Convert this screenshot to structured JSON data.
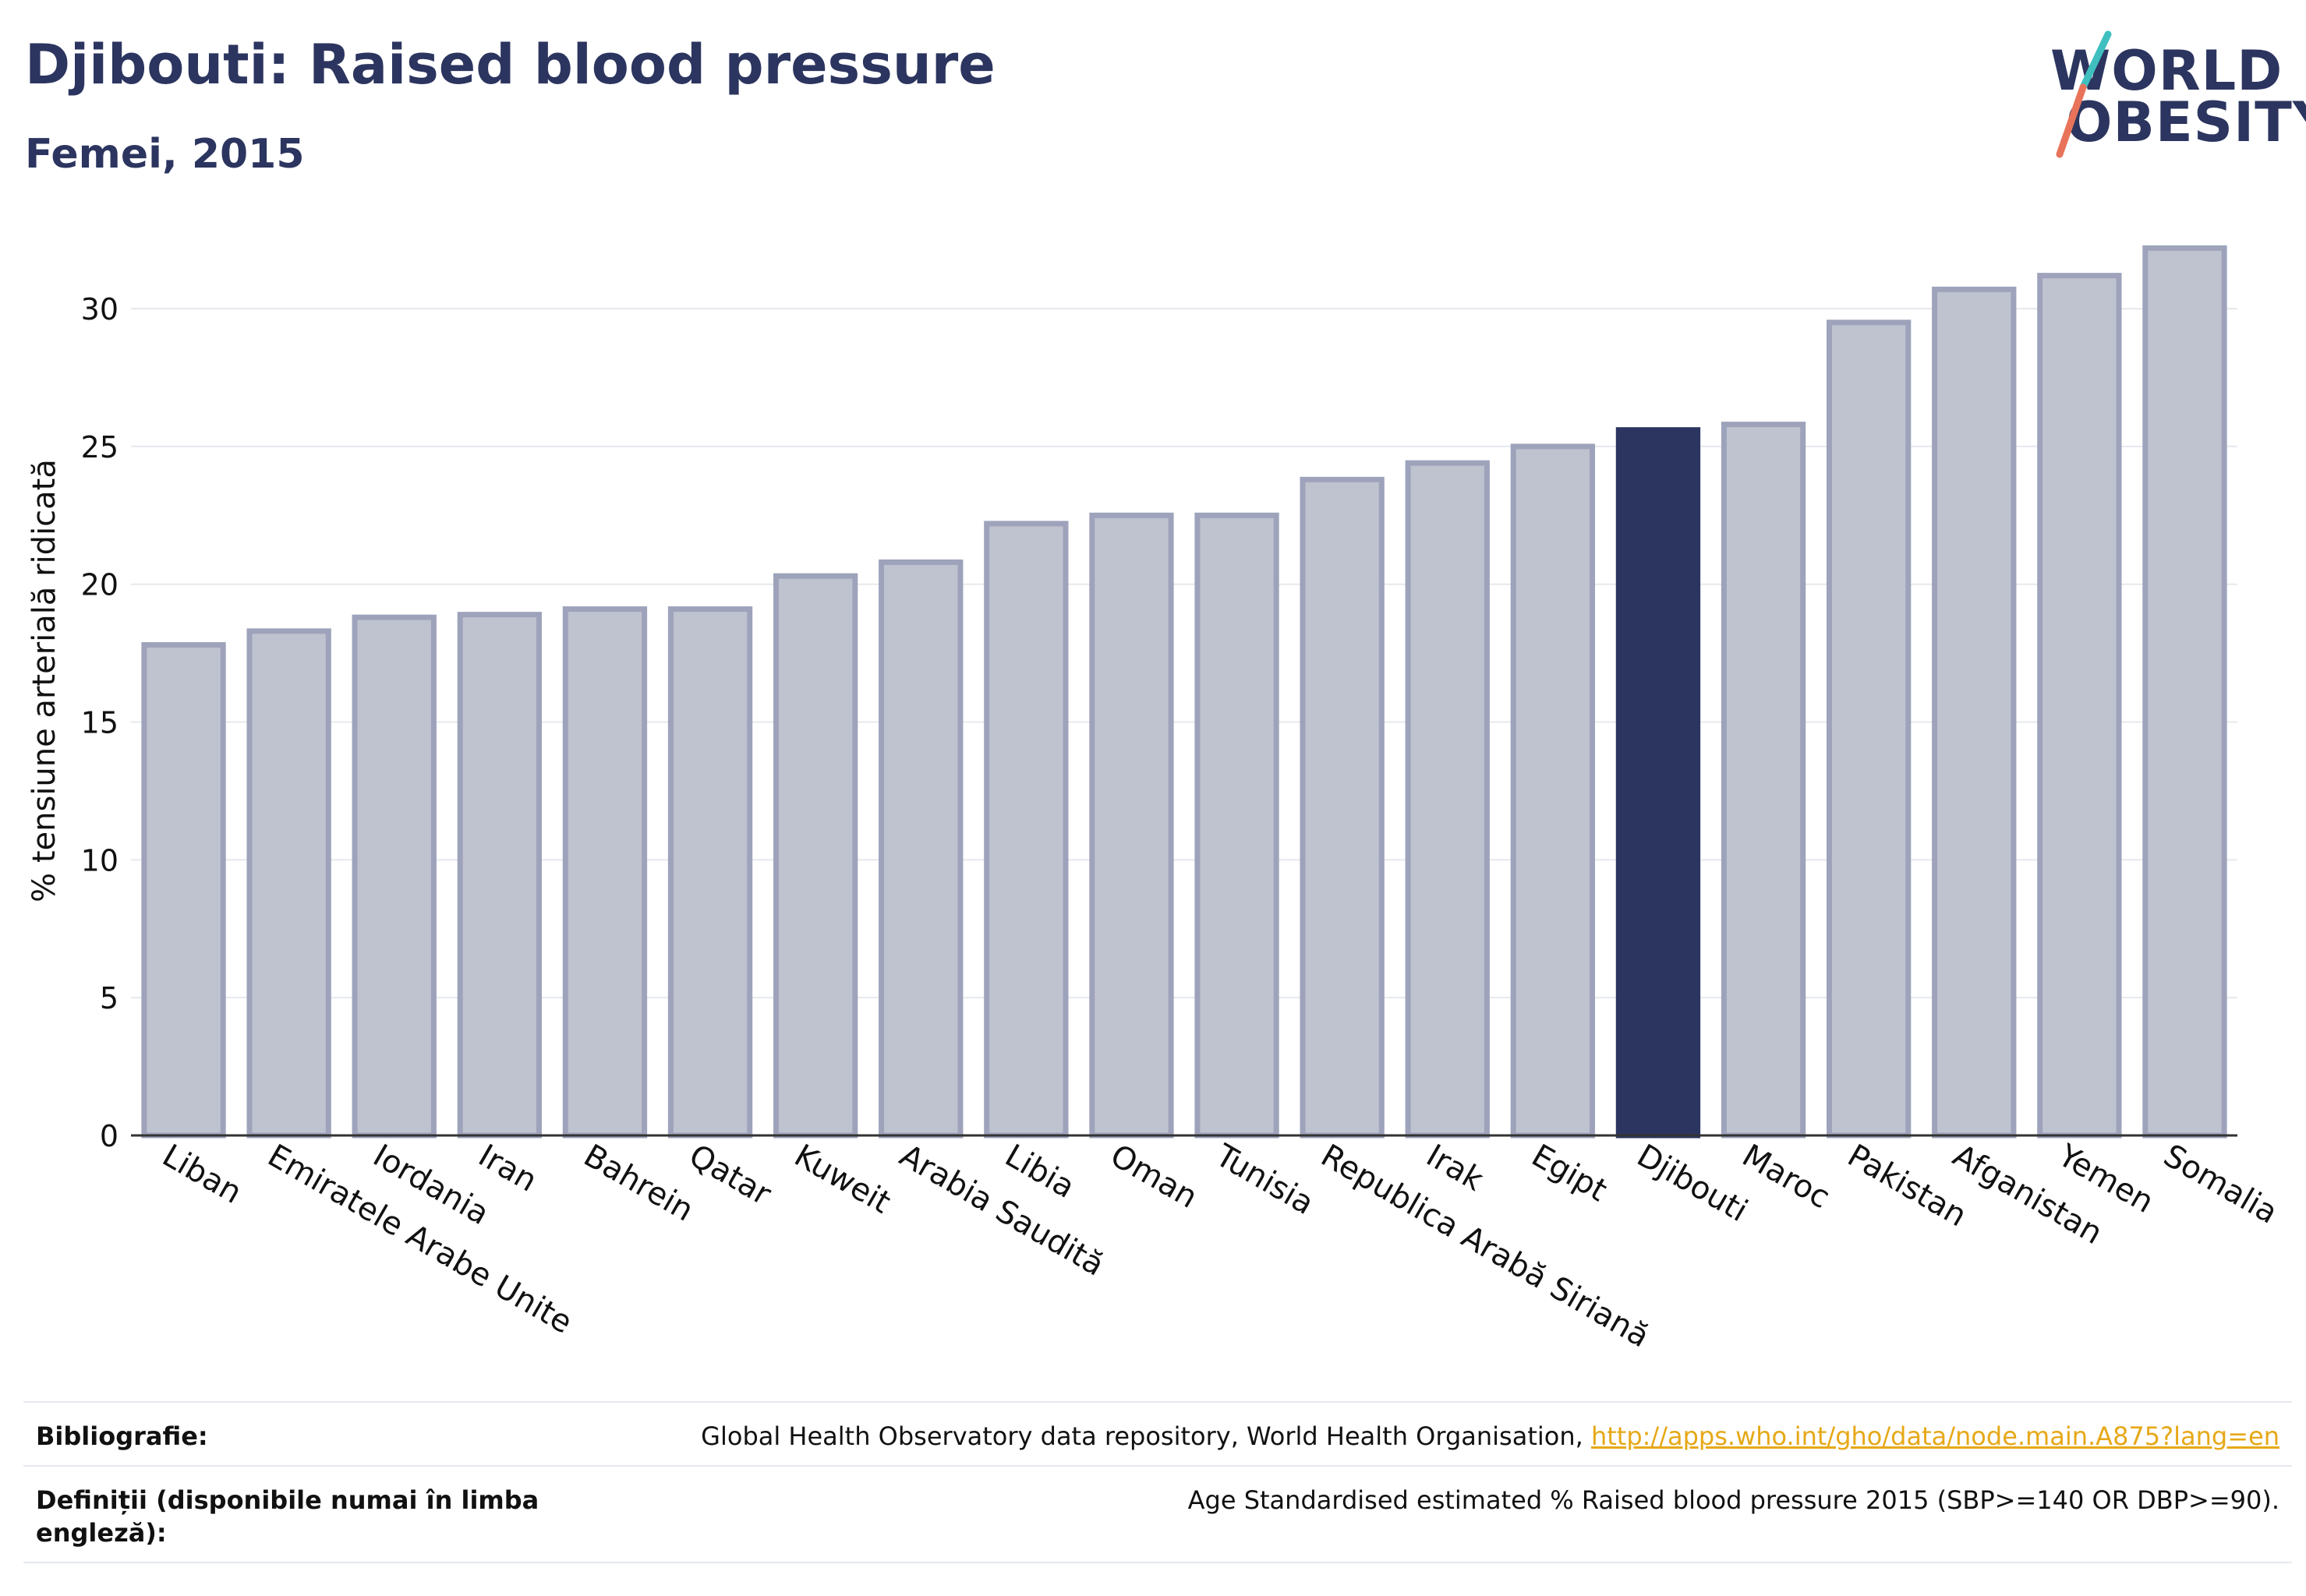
{
  "header": {
    "title": "Djibouti: Raised blood pressure",
    "subtitle": "Femei, 2015"
  },
  "logo": {
    "line1": "WORLD",
    "line2": "OBESITY",
    "slash_colors": [
      "#3fbfbf",
      "#e8735a"
    ]
  },
  "colors": {
    "bar_default": "#bfc2cf",
    "bar_border": "#9ea3bb",
    "bar_highlight": "#2b355f",
    "text_dark": "#2b355f"
  },
  "chart_data": {
    "type": "bar",
    "title": "Djibouti: Raised blood pressure",
    "subtitle": "Femei, 2015",
    "ylabel": "% tensiune arterială ridicată",
    "ylim": [
      0,
      33
    ],
    "yticks": [
      0,
      5,
      10,
      15,
      20,
      25,
      30
    ],
    "grid": true,
    "highlight": "Djibouti",
    "categories": [
      "Liban",
      "Emiratele Arabe Unite",
      "Iordania",
      "Iran",
      "Bahrein",
      "Qatar",
      "Kuweit",
      "Arabia Saudită",
      "Libia",
      "Oman",
      "Tunisia",
      "Republica Arabă Siriană",
      "Irak",
      "Egipt",
      "Djibouti",
      "Maroc",
      "Pakistan",
      "Afganistan",
      "Yemen",
      "Somalia"
    ],
    "values": [
      17.8,
      18.3,
      18.8,
      18.9,
      19.1,
      19.1,
      20.3,
      20.8,
      22.2,
      22.5,
      22.5,
      23.8,
      24.4,
      25.0,
      25.6,
      25.8,
      29.5,
      30.7,
      31.2,
      32.2
    ]
  },
  "footer": {
    "bibliography_label": "Bibliografie:",
    "bibliography_text": "Global Health Observatory data repository, World Health Organisation, ",
    "bibliography_link": "http://apps.who.int/gho/data/node.main.A875?lang=en",
    "definitions_label_line1": "Definiții (disponibile numai în limba",
    "definitions_label_line2": "engleză):",
    "definitions_text": "Age Standardised estimated % Raised blood pressure 2015 (SBP>=140 OR DBP>=90)."
  }
}
